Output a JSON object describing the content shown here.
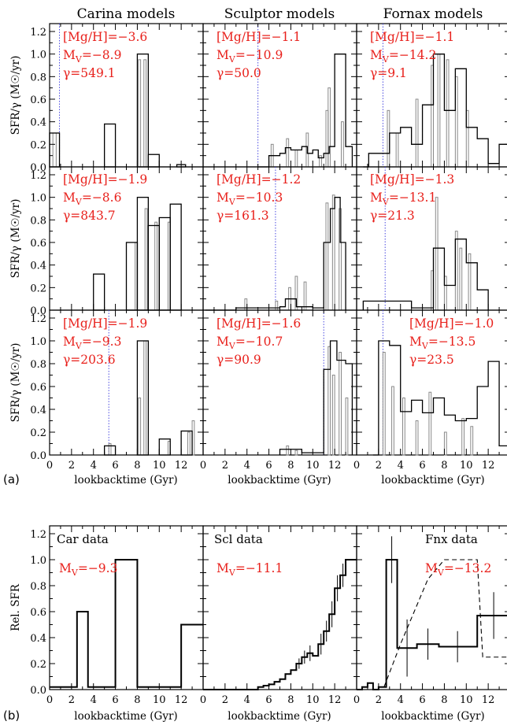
{
  "figure_labels": {
    "a": "(a)",
    "b": "(b)"
  },
  "column_titles": [
    "Carina models",
    "Sculptor models",
    "Fornax models"
  ],
  "top": {
    "ylabel": "SFR/γ (M☉/yr)",
    "xlabel": "lookbacktime (Gyr)",
    "yticks": [
      "0.0",
      "0.2",
      "0.4",
      "0.6",
      "0.8",
      "1.0",
      "1.2"
    ],
    "xticks": [
      "0",
      "2",
      "4",
      "6",
      "8",
      "10",
      "12"
    ]
  },
  "bottom": {
    "ylabel": "Rel. SFR",
    "xlabel": "lookbacktime (Gyr)",
    "yticks": [
      "0.0",
      "0.2",
      "0.4",
      "0.6",
      "0.8",
      "1.0",
      "1.2"
    ],
    "xticks": [
      "0",
      "2",
      "4",
      "6",
      "8",
      "10",
      "12"
    ]
  },
  "colors": {
    "annotation": "#e8201b",
    "dotted_line": "#4a4ae0",
    "fine_histogram": "#888888"
  },
  "chart_data": [
    {
      "type": "line",
      "panel": "Carina model 1",
      "xlim": [
        0,
        14
      ],
      "ylim": [
        0,
        1.2
      ],
      "annotation": [
        "[Mg/H]=−3.6",
        "MV=−8.9",
        "γ=549.1"
      ],
      "dotted_x": 0.9,
      "black_bins": [
        [
          0,
          0.9,
          0.3
        ],
        [
          5,
          6,
          0.38
        ],
        [
          8,
          9,
          1.0
        ],
        [
          9,
          10,
          0.11
        ],
        [
          11.6,
          12.4,
          0.02
        ]
      ],
      "gray_bins": [
        [
          0.3,
          0.6,
          0.3
        ],
        [
          8.1,
          8.3,
          0.95
        ],
        [
          8.6,
          8.8,
          0.95
        ]
      ]
    },
    {
      "type": "line",
      "panel": "Sculptor model 1",
      "xlim": [
        0,
        14
      ],
      "ylim": [
        0,
        1.2
      ],
      "annotation": [
        "[Mg/H]=−1.1",
        "MV=−10.9",
        "γ=50.0"
      ],
      "dotted_x": 5.0,
      "black_steps": [
        [
          5,
          0.0
        ],
        [
          6,
          0.1
        ],
        [
          7,
          0.12
        ],
        [
          7.5,
          0.17
        ],
        [
          8,
          0.15
        ],
        [
          9,
          0.18
        ],
        [
          9.5,
          0.12
        ],
        [
          10,
          0.15
        ],
        [
          10.5,
          0.08
        ],
        [
          11,
          0.12
        ],
        [
          11.5,
          0.18
        ],
        [
          12,
          1.0
        ],
        [
          13,
          0.18
        ],
        [
          13.6,
          0
        ]
      ],
      "gray_bins": [
        [
          6.2,
          6.4,
          0.2
        ],
        [
          7.6,
          7.8,
          0.25
        ],
        [
          8.4,
          8.6,
          0.15
        ],
        [
          9.4,
          9.6,
          0.3
        ],
        [
          10.6,
          10.8,
          0.1
        ],
        [
          11.2,
          11.4,
          0.5
        ],
        [
          11.4,
          11.6,
          0.7
        ],
        [
          12.6,
          12.8,
          0.4
        ]
      ]
    },
    {
      "type": "line",
      "panel": "Fornax model 1",
      "xlim": [
        0,
        14
      ],
      "ylim": [
        0,
        1.2
      ],
      "annotation": [
        "[Mg/H]=−1.1",
        "MV=−14.2",
        "γ=9.1"
      ],
      "dotted_x": 2.4,
      "black_steps": [
        [
          0.6,
          0.0
        ],
        [
          1.1,
          0.12
        ],
        [
          3,
          0.3
        ],
        [
          4,
          0.35
        ],
        [
          5,
          0.2
        ],
        [
          6,
          0.55
        ],
        [
          7,
          1.0
        ],
        [
          8,
          0.5
        ],
        [
          9,
          0.87
        ],
        [
          10,
          0.35
        ],
        [
          11,
          0.25
        ],
        [
          12,
          0.03
        ],
        [
          13,
          0.2
        ],
        [
          14,
          0
        ]
      ],
      "gray_bins": [
        [
          2.8,
          3.0,
          0.5
        ],
        [
          3.6,
          3.8,
          0.3
        ],
        [
          5.4,
          5.6,
          0.6
        ],
        [
          6.8,
          7.0,
          0.9
        ],
        [
          7.4,
          7.6,
          1.0
        ],
        [
          8.2,
          8.4,
          0.95
        ],
        [
          9.0,
          9.2,
          0.8
        ],
        [
          10.0,
          10.2,
          0.5
        ]
      ]
    },
    {
      "type": "line",
      "panel": "Carina model 2",
      "xlim": [
        0,
        14
      ],
      "ylim": [
        0,
        1.2
      ],
      "annotation": [
        "[Mg/H]=−1.9",
        "MV=−8.6",
        "γ=843.7"
      ],
      "dotted_x": null,
      "black_bins": [
        [
          4,
          5,
          0.32
        ],
        [
          7,
          8,
          0.6
        ],
        [
          8,
          9,
          1.0
        ],
        [
          9,
          10,
          0.75
        ],
        [
          10,
          11,
          0.82
        ],
        [
          11,
          12,
          0.94
        ]
      ],
      "gray_bins": [
        [
          7.8,
          8.0,
          0.6
        ],
        [
          8.7,
          8.9,
          0.9
        ],
        [
          9.6,
          9.8,
          0.78
        ],
        [
          10.8,
          11.0,
          0.78
        ]
      ]
    },
    {
      "type": "line",
      "panel": "Sculptor model 2",
      "xlim": [
        0,
        14
      ],
      "ylim": [
        0,
        1.2
      ],
      "annotation": [
        "[Mg/H]=−1.2",
        "MV=−10.3",
        "γ=161.3"
      ],
      "dotted_x": 6.6,
      "black_steps": [
        [
          0.2,
          0.0
        ],
        [
          3,
          0.02
        ],
        [
          7,
          0.03
        ],
        [
          7.5,
          0.1
        ],
        [
          8.5,
          0.03
        ],
        [
          10,
          0.02
        ],
        [
          11,
          0.6
        ],
        [
          11.6,
          0.9
        ],
        [
          12,
          1.0
        ],
        [
          12.5,
          0.6
        ],
        [
          13,
          0
        ]
      ],
      "gray_bins": [
        [
          3.8,
          4.0,
          0.1
        ],
        [
          6.6,
          6.8,
          0.08
        ],
        [
          7.8,
          8.0,
          0.2
        ],
        [
          8.4,
          8.6,
          0.3
        ],
        [
          9.2,
          9.4,
          0.25
        ],
        [
          11.2,
          11.4,
          0.95
        ],
        [
          11.8,
          12.0,
          1.02
        ],
        [
          12.4,
          12.6,
          0.9
        ]
      ]
    },
    {
      "type": "line",
      "panel": "Fornax model 2",
      "xlim": [
        0,
        14
      ],
      "ylim": [
        0,
        1.2
      ],
      "annotation": [
        "[Mg/H]=−1.3",
        "MV=−13.1",
        "γ=21.3"
      ],
      "dotted_x": 2.6,
      "black_steps": [
        [
          0.6,
          0.0
        ],
        [
          0.6,
          0.08
        ],
        [
          5,
          0.08
        ],
        [
          5,
          0.02
        ],
        [
          6,
          0.02
        ],
        [
          7,
          0.55
        ],
        [
          8,
          0.22
        ],
        [
          9,
          0.63
        ],
        [
          10,
          0.42
        ],
        [
          11,
          0.18
        ],
        [
          12,
          0
        ]
      ],
      "gray_bins": [
        [
          6.8,
          7.0,
          0.35
        ],
        [
          7.2,
          7.4,
          1.0
        ],
        [
          8.0,
          8.2,
          0.3
        ],
        [
          9.0,
          9.2,
          0.7
        ],
        [
          9.4,
          9.6,
          0.55
        ],
        [
          10.2,
          10.4,
          0.5
        ]
      ]
    },
    {
      "type": "line",
      "panel": "Carina model 3",
      "xlim": [
        0,
        14
      ],
      "ylim": [
        0,
        1.2
      ],
      "annotation": [
        "[Mg/H]=−1.9",
        "MV=−9.3",
        "γ=203.6"
      ],
      "dotted_x": 5.4,
      "black_bins": [
        [
          5,
          6,
          0.08
        ],
        [
          8,
          9,
          1.0
        ],
        [
          10,
          11,
          0.14
        ],
        [
          12,
          13,
          0.21
        ]
      ],
      "gray_bins": [
        [
          5.4,
          5.6,
          0.1
        ],
        [
          8.1,
          8.3,
          0.5
        ],
        [
          8.6,
          8.8,
          1.0
        ],
        [
          10.8,
          11.0,
          0.12
        ],
        [
          12.6,
          12.8,
          0.2
        ],
        [
          13.0,
          13.2,
          0.3
        ]
      ]
    },
    {
      "type": "line",
      "panel": "Sculptor model 3",
      "xlim": [
        0,
        14
      ],
      "ylim": [
        0,
        1.2
      ],
      "annotation": [
        "[Mg/H]=−1.6",
        "MV=−10.7",
        "γ=90.9"
      ],
      "dotted_x": 11.0,
      "black_steps": [
        [
          7,
          0.0
        ],
        [
          7,
          0.05
        ],
        [
          9,
          0.05
        ],
        [
          9,
          0.02
        ],
        [
          10.5,
          0.02
        ],
        [
          11,
          0.75
        ],
        [
          11.6,
          1.0
        ],
        [
          12.2,
          0.83
        ],
        [
          13,
          0.8
        ],
        [
          13.6,
          0
        ]
      ],
      "gray_bins": [
        [
          7.6,
          7.8,
          0.08
        ],
        [
          8.4,
          8.6,
          0.04
        ],
        [
          11.4,
          11.6,
          0.95
        ],
        [
          11.8,
          12.0,
          0.7
        ],
        [
          12.4,
          12.6,
          0.9
        ],
        [
          13.0,
          13.2,
          0.5
        ]
      ]
    },
    {
      "type": "line",
      "panel": "Fornax model 3",
      "xlim": [
        0,
        14
      ],
      "ylim": [
        0,
        1.2
      ],
      "annotation": [
        "[Mg/H]=−1.0",
        "MV=−13.5",
        "γ=23.5"
      ],
      "dotted_x": 2.4,
      "black_steps": [
        [
          1.5,
          0.0
        ],
        [
          2,
          1.0
        ],
        [
          3,
          0.96
        ],
        [
          4,
          0.38
        ],
        [
          5,
          0.48
        ],
        [
          6,
          0.37
        ],
        [
          7,
          0.5
        ],
        [
          8,
          0.35
        ],
        [
          9,
          0.3
        ],
        [
          10,
          0.32
        ],
        [
          11,
          0.6
        ],
        [
          12,
          0.82
        ],
        [
          13,
          0.08
        ],
        [
          14,
          0
        ]
      ],
      "gray_bins": [
        [
          2.4,
          2.6,
          0.9
        ],
        [
          3.2,
          3.4,
          0.6
        ],
        [
          4.2,
          4.4,
          0.5
        ],
        [
          5.4,
          5.6,
          0.3
        ],
        [
          6.6,
          6.8,
          0.55
        ],
        [
          8.0,
          8.2,
          0.2
        ],
        [
          9.6,
          9.8,
          0.32
        ],
        [
          10.4,
          10.6,
          0.25
        ]
      ]
    },
    {
      "type": "line",
      "panel": "Carina data",
      "label": "Car data",
      "mv": "MV=−9.3",
      "xlim": [
        0,
        14
      ],
      "ylim": [
        0,
        1.2
      ],
      "steps": [
        [
          0,
          0.02
        ],
        [
          2.5,
          0.6
        ],
        [
          3.5,
          0.02
        ],
        [
          6,
          1.0
        ],
        [
          8,
          0.02
        ],
        [
          12,
          0.5
        ],
        [
          14,
          0.5
        ]
      ]
    },
    {
      "type": "line",
      "panel": "Sculptor data",
      "label": "Scl data",
      "mv": "MV=−11.1",
      "xlim": [
        0,
        14
      ],
      "ylim": [
        0,
        1.2
      ],
      "steps": [
        [
          0,
          0.0
        ],
        [
          4.5,
          0.0
        ],
        [
          5,
          0.02
        ],
        [
          5.5,
          0.03
        ],
        [
          6,
          0.04
        ],
        [
          6.5,
          0.06
        ],
        [
          7,
          0.08
        ],
        [
          7.5,
          0.12
        ],
        [
          8,
          0.15
        ],
        [
          8.5,
          0.2
        ],
        [
          9,
          0.25
        ],
        [
          9.5,
          0.28
        ],
        [
          10,
          0.26
        ],
        [
          10.5,
          0.35
        ],
        [
          11,
          0.45
        ],
        [
          11.5,
          0.58
        ],
        [
          12,
          0.78
        ],
        [
          12.5,
          0.88
        ],
        [
          13,
          1.0
        ],
        [
          14,
          1.0
        ]
      ],
      "errors": [
        [
          8.75,
          0.2,
          0.04
        ],
        [
          9.25,
          0.25,
          0.05
        ],
        [
          9.75,
          0.28,
          0.06
        ],
        [
          10.75,
          0.35,
          0.08
        ],
        [
          11.25,
          0.45,
          0.08
        ],
        [
          11.75,
          0.58,
          0.1
        ],
        [
          12.25,
          0.78,
          0.1
        ],
        [
          12.75,
          0.88,
          0.09
        ]
      ]
    },
    {
      "type": "line",
      "panel": "Fornax data",
      "label": "Fnx data",
      "mv": "MV=−13.2",
      "xlim": [
        0,
        14
      ],
      "ylim": [
        0,
        1.2
      ],
      "steps": [
        [
          0,
          0.0
        ],
        [
          0.5,
          0.02
        ],
        [
          1,
          0.05
        ],
        [
          1.5,
          0.0
        ],
        [
          2,
          0.02
        ],
        [
          2.7,
          1.0
        ],
        [
          3.7,
          0.32
        ],
        [
          5.5,
          0.35
        ],
        [
          7.5,
          0.33
        ],
        [
          11,
          0.57
        ],
        [
          14,
          0.57
        ]
      ],
      "dashed": [
        [
          2.5,
          0.02
        ],
        [
          4,
          0.35
        ],
        [
          6.5,
          0.85
        ],
        [
          8,
          1.0
        ],
        [
          11,
          1.0
        ],
        [
          11.5,
          0.25
        ],
        [
          14,
          0.25
        ]
      ],
      "errors": [
        [
          3.2,
          1.0,
          0.18
        ],
        [
          4.6,
          0.32,
          0.22
        ],
        [
          6.5,
          0.35,
          0.12
        ],
        [
          9.2,
          0.33,
          0.12
        ],
        [
          12.5,
          0.57,
          0.18
        ]
      ]
    }
  ]
}
